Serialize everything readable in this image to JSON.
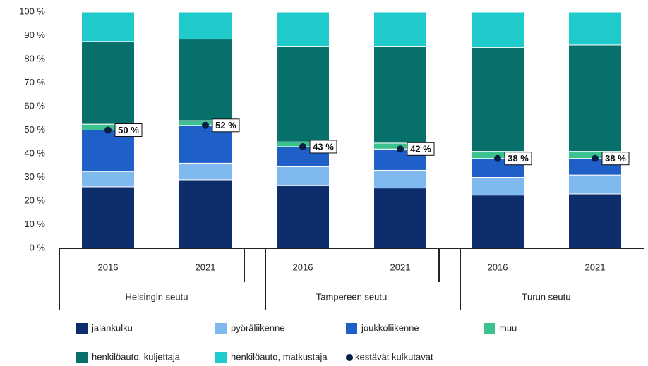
{
  "chart_data": {
    "type": "stacked-bar",
    "categories": [
      "2016",
      "2021",
      "2016",
      "2021",
      "2016",
      "2021"
    ],
    "groups": [
      "Helsingin seutu",
      "Tampereen seutu",
      "Turun seutu"
    ],
    "ylim": [
      0,
      100
    ],
    "yticks": [
      {
        "value": 0,
        "label": "0 %"
      },
      {
        "value": 10,
        "label": "10 %"
      },
      {
        "value": 20,
        "label": "20 %"
      },
      {
        "value": 30,
        "label": "30 %"
      },
      {
        "value": 40,
        "label": "40 %"
      },
      {
        "value": 50,
        "label": "50 %"
      },
      {
        "value": 60,
        "label": "60 %"
      },
      {
        "value": 70,
        "label": "70 %"
      },
      {
        "value": 80,
        "label": "80 %"
      },
      {
        "value": 90,
        "label": "90 %"
      },
      {
        "value": 100,
        "label": "100 %"
      }
    ],
    "series": [
      {
        "name": "jalankulku",
        "color": "#0d2d6c",
        "values": [
          26,
          29,
          26.5,
          25.5,
          22.5,
          23
        ]
      },
      {
        "name": "pyöräliikenne",
        "color": "#80b9f0",
        "values": [
          6.5,
          7,
          8,
          7.5,
          7.5,
          8
        ]
      },
      {
        "name": "joukkoliikenne",
        "color": "#1f5fc8",
        "values": [
          17.5,
          16,
          8.5,
          9,
          8,
          7
        ]
      },
      {
        "name": "muu",
        "color": "#3cc28f",
        "values": [
          2.5,
          2,
          2,
          2.5,
          3,
          3
        ]
      },
      {
        "name": "henkilöauto, kuljettaja",
        "color": "#08706a",
        "values": [
          35,
          34.5,
          40.5,
          41,
          44,
          45
        ]
      },
      {
        "name": "henkilöauto, matkustaja",
        "color": "#1ecaca",
        "values": [
          12.5,
          11.5,
          14.5,
          14.5,
          15,
          14
        ]
      }
    ],
    "markers": {
      "name": "kestävät kulkutavat",
      "color": "#0a1f44",
      "values": [
        50,
        52,
        43,
        42,
        38,
        38
      ],
      "value_labels": [
        "50 %",
        "52 %",
        "43 %",
        "42 %",
        "38 %",
        "38 %"
      ]
    }
  }
}
